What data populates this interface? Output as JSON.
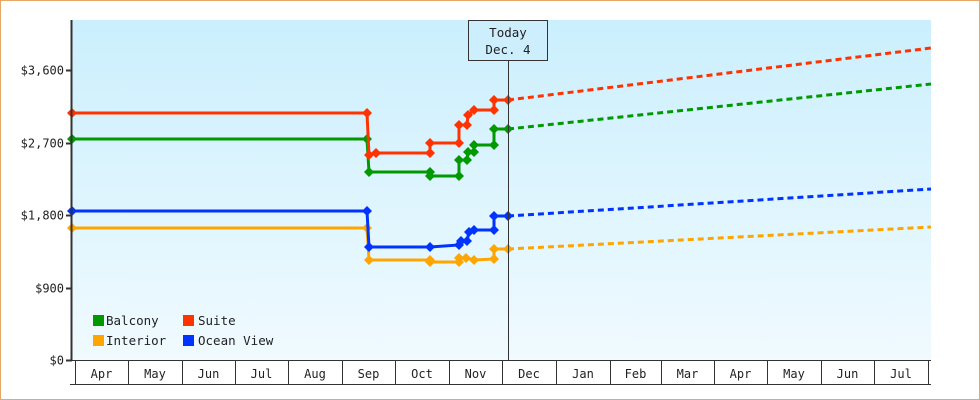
{
  "chart_data": {
    "type": "line",
    "title": "",
    "xlabel": "",
    "ylabel": "",
    "ylim": [
      0,
      4200
    ],
    "y_ticks": [
      "$0",
      "$900",
      "$1,800",
      "$2,700",
      "$3,600"
    ],
    "x_months": [
      "Apr",
      "May",
      "Jun",
      "Jul",
      "Aug",
      "Sep",
      "Oct",
      "Nov",
      "Dec",
      "Jan",
      "Feb",
      "Mar",
      "Apr",
      "May",
      "Jun",
      "Jul"
    ],
    "today_marker": {
      "line1": "Today",
      "line2": "Dec. 4"
    },
    "legend_position": "lower-left",
    "grid": false,
    "series": [
      {
        "name": "Balcony",
        "color": "#009900",
        "historical": [
          [
            "Apr 1",
            2750
          ],
          [
            "Sep 1",
            2750
          ],
          [
            "Sep 2",
            2330
          ],
          [
            "Oct 1",
            2330
          ],
          [
            "Oct 1",
            2280
          ],
          [
            "Oct 18",
            2280
          ],
          [
            "Oct 18",
            2500
          ],
          [
            "Oct 22",
            2500
          ],
          [
            "Oct 22",
            2580
          ],
          [
            "Oct 26",
            2580
          ],
          [
            "Oct 26",
            2670
          ],
          [
            "Nov 15",
            2670
          ],
          [
            "Nov 15",
            2850
          ],
          [
            "Dec 4",
            2850
          ]
        ],
        "forecast": [
          [
            "Dec 4",
            2850
          ],
          [
            "Aug 1",
            3450
          ]
        ]
      },
      {
        "name": "Suite",
        "color": "#ff3300",
        "historical": [
          [
            "Apr 1",
            3070
          ],
          [
            "Sep 1",
            3070
          ],
          [
            "Sep 2",
            2560
          ],
          [
            "Sep 5",
            2600
          ],
          [
            "Oct 1",
            2600
          ],
          [
            "Oct 1",
            2720
          ],
          [
            "Oct 18",
            2720
          ],
          [
            "Oct 18",
            2900
          ],
          [
            "Oct 22",
            2900
          ],
          [
            "Oct 22",
            3030
          ],
          [
            "Oct 26",
            3030
          ],
          [
            "Oct 26",
            3100
          ],
          [
            "Nov 15",
            3100
          ],
          [
            "Nov 15",
            3220
          ],
          [
            "Dec 4",
            3220
          ]
        ],
        "forecast": [
          [
            "Dec 4",
            3220
          ],
          [
            "Aug 1",
            3900
          ]
        ]
      },
      {
        "name": "Interior",
        "color": "#ffa500",
        "historical": [
          [
            "Apr 1",
            1630
          ],
          [
            "Sep 1",
            1630
          ],
          [
            "Sep 2",
            1230
          ],
          [
            "Oct 1",
            1230
          ],
          [
            "Oct 1",
            1200
          ],
          [
            "Oct 18",
            1200
          ],
          [
            "Oct 18",
            1250
          ],
          [
            "Oct 22",
            1250
          ],
          [
            "Oct 26",
            1250
          ],
          [
            "Nov 15",
            1250
          ],
          [
            "Nov 15",
            1370
          ],
          [
            "Dec 4",
            1370
          ]
        ],
        "forecast": [
          [
            "Dec 4",
            1370
          ],
          [
            "Aug 1",
            1650
          ]
        ]
      },
      {
        "name": "Ocean View",
        "color": "#0033ff",
        "historical": [
          [
            "Apr 1",
            1840
          ],
          [
            "Sep 1",
            1840
          ],
          [
            "Sep 2",
            1400
          ],
          [
            "Oct 1",
            1400
          ],
          [
            "Oct 18",
            1400
          ],
          [
            "Oct 18",
            1460
          ],
          [
            "Oct 22",
            1460
          ],
          [
            "Oct 22",
            1560
          ],
          [
            "Oct 26",
            1560
          ],
          [
            "Oct 26",
            1600
          ],
          [
            "Nov 15",
            1600
          ],
          [
            "Nov 15",
            1780
          ],
          [
            "Dec 4",
            1780
          ]
        ],
        "forecast": [
          [
            "Dec 4",
            1780
          ],
          [
            "Aug 1",
            2110
          ]
        ]
      }
    ]
  },
  "legend": {
    "items": [
      {
        "label": "Balcony",
        "color": "#009900"
      },
      {
        "label": "Suite",
        "color": "#ff3300"
      },
      {
        "label": "Interior",
        "color": "#ffa500"
      },
      {
        "label": "Ocean View",
        "color": "#0033ff"
      }
    ]
  }
}
